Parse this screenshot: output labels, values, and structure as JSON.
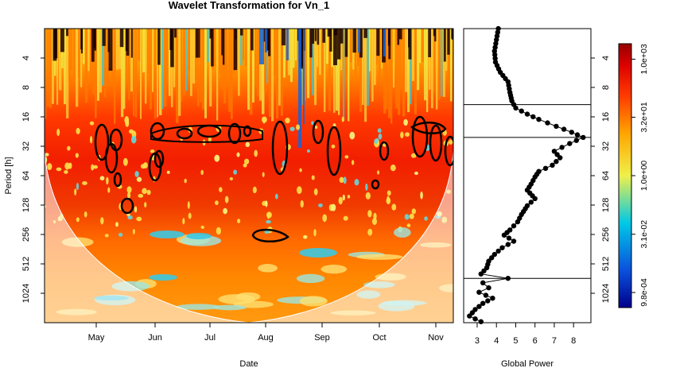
{
  "chart_data": [
    {
      "type": "heatmap",
      "title": "Wavelet Transformation for Vn_1",
      "xlabel": "Date",
      "ylabel": "Period [h]",
      "x_ticks": [
        "May",
        "Jun",
        "Jul",
        "Aug",
        "Sep",
        "Oct",
        "Nov"
      ],
      "y_ticks": [
        4,
        8,
        16,
        32,
        64,
        128,
        256,
        512,
        1024
      ],
      "y_scale": "log2",
      "y_range": [
        2,
        2048
      ],
      "y_reversed": true,
      "cone_of_influence": true,
      "significance_contours": true
    },
    {
      "type": "line",
      "xlabel": "Global Power",
      "x_ticks": [
        3,
        4,
        5,
        6,
        7,
        8
      ],
      "xlim": [
        2.3,
        8.9
      ],
      "y_ticks": [
        4,
        8,
        16,
        32,
        64,
        128,
        256,
        512,
        1024
      ],
      "y_scale": "log2",
      "y_reversed": true,
      "markers": "filled-circle",
      "reference_lines": [
        12,
        26,
        720
      ],
      "points": [
        {
          "period": 2,
          "power": 4.1
        },
        {
          "period": 2.6,
          "power": 4.0
        },
        {
          "period": 3.4,
          "power": 3.9
        },
        {
          "period": 4.4,
          "power": 3.95
        },
        {
          "period": 5.6,
          "power": 4.2
        },
        {
          "period": 7,
          "power": 4.6
        },
        {
          "period": 9,
          "power": 4.7
        },
        {
          "period": 11,
          "power": 4.8
        },
        {
          "period": 13,
          "power": 5.0
        },
        {
          "period": 15,
          "power": 5.6
        },
        {
          "period": 17,
          "power": 6.2
        },
        {
          "period": 20,
          "power": 7.1
        },
        {
          "period": 23,
          "power": 7.9
        },
        {
          "period": 26,
          "power": 8.5
        },
        {
          "period": 30,
          "power": 7.8
        },
        {
          "period": 36,
          "power": 7.0
        },
        {
          "period": 42,
          "power": 7.3
        },
        {
          "period": 50,
          "power": 6.9
        },
        {
          "period": 58,
          "power": 6.2
        },
        {
          "period": 66,
          "power": 6.0
        },
        {
          "period": 78,
          "power": 5.8
        },
        {
          "period": 90,
          "power": 5.6
        },
        {
          "period": 110,
          "power": 6.0
        },
        {
          "period": 130,
          "power": 5.6
        },
        {
          "period": 160,
          "power": 5.3
        },
        {
          "period": 190,
          "power": 5.1
        },
        {
          "period": 230,
          "power": 4.7
        },
        {
          "period": 260,
          "power": 4.4
        },
        {
          "period": 300,
          "power": 4.9
        },
        {
          "period": 350,
          "power": 4.3
        },
        {
          "period": 410,
          "power": 3.9
        },
        {
          "period": 480,
          "power": 3.6
        },
        {
          "period": 560,
          "power": 3.5
        },
        {
          "period": 650,
          "power": 3.2
        },
        {
          "period": 720,
          "power": 4.6
        },
        {
          "period": 800,
          "power": 3.3
        },
        {
          "period": 900,
          "power": 3.6
        },
        {
          "period": 1000,
          "power": 3.1
        },
        {
          "period": 1150,
          "power": 3.8
        },
        {
          "period": 1300,
          "power": 3.3
        },
        {
          "period": 1500,
          "power": 2.9
        },
        {
          "period": 1750,
          "power": 2.6
        },
        {
          "period": 2000,
          "power": 3.2
        }
      ]
    },
    {
      "type": "colorbar",
      "tick_labels": [
        "1.0e+03",
        "3.2e+01",
        "1.0e+00",
        "3.1e-02",
        "9.8e-04"
      ],
      "tick_values": [
        1000,
        32,
        1,
        0.031,
        0.00098
      ],
      "range": [
        0.0004,
        2500
      ],
      "scale": "log",
      "colors": [
        "#00008b",
        "#0a50dc",
        "#00c8e6",
        "#f0f04a",
        "#ffa500",
        "#ff3c00",
        "#dc0000",
        "#960000"
      ]
    }
  ]
}
